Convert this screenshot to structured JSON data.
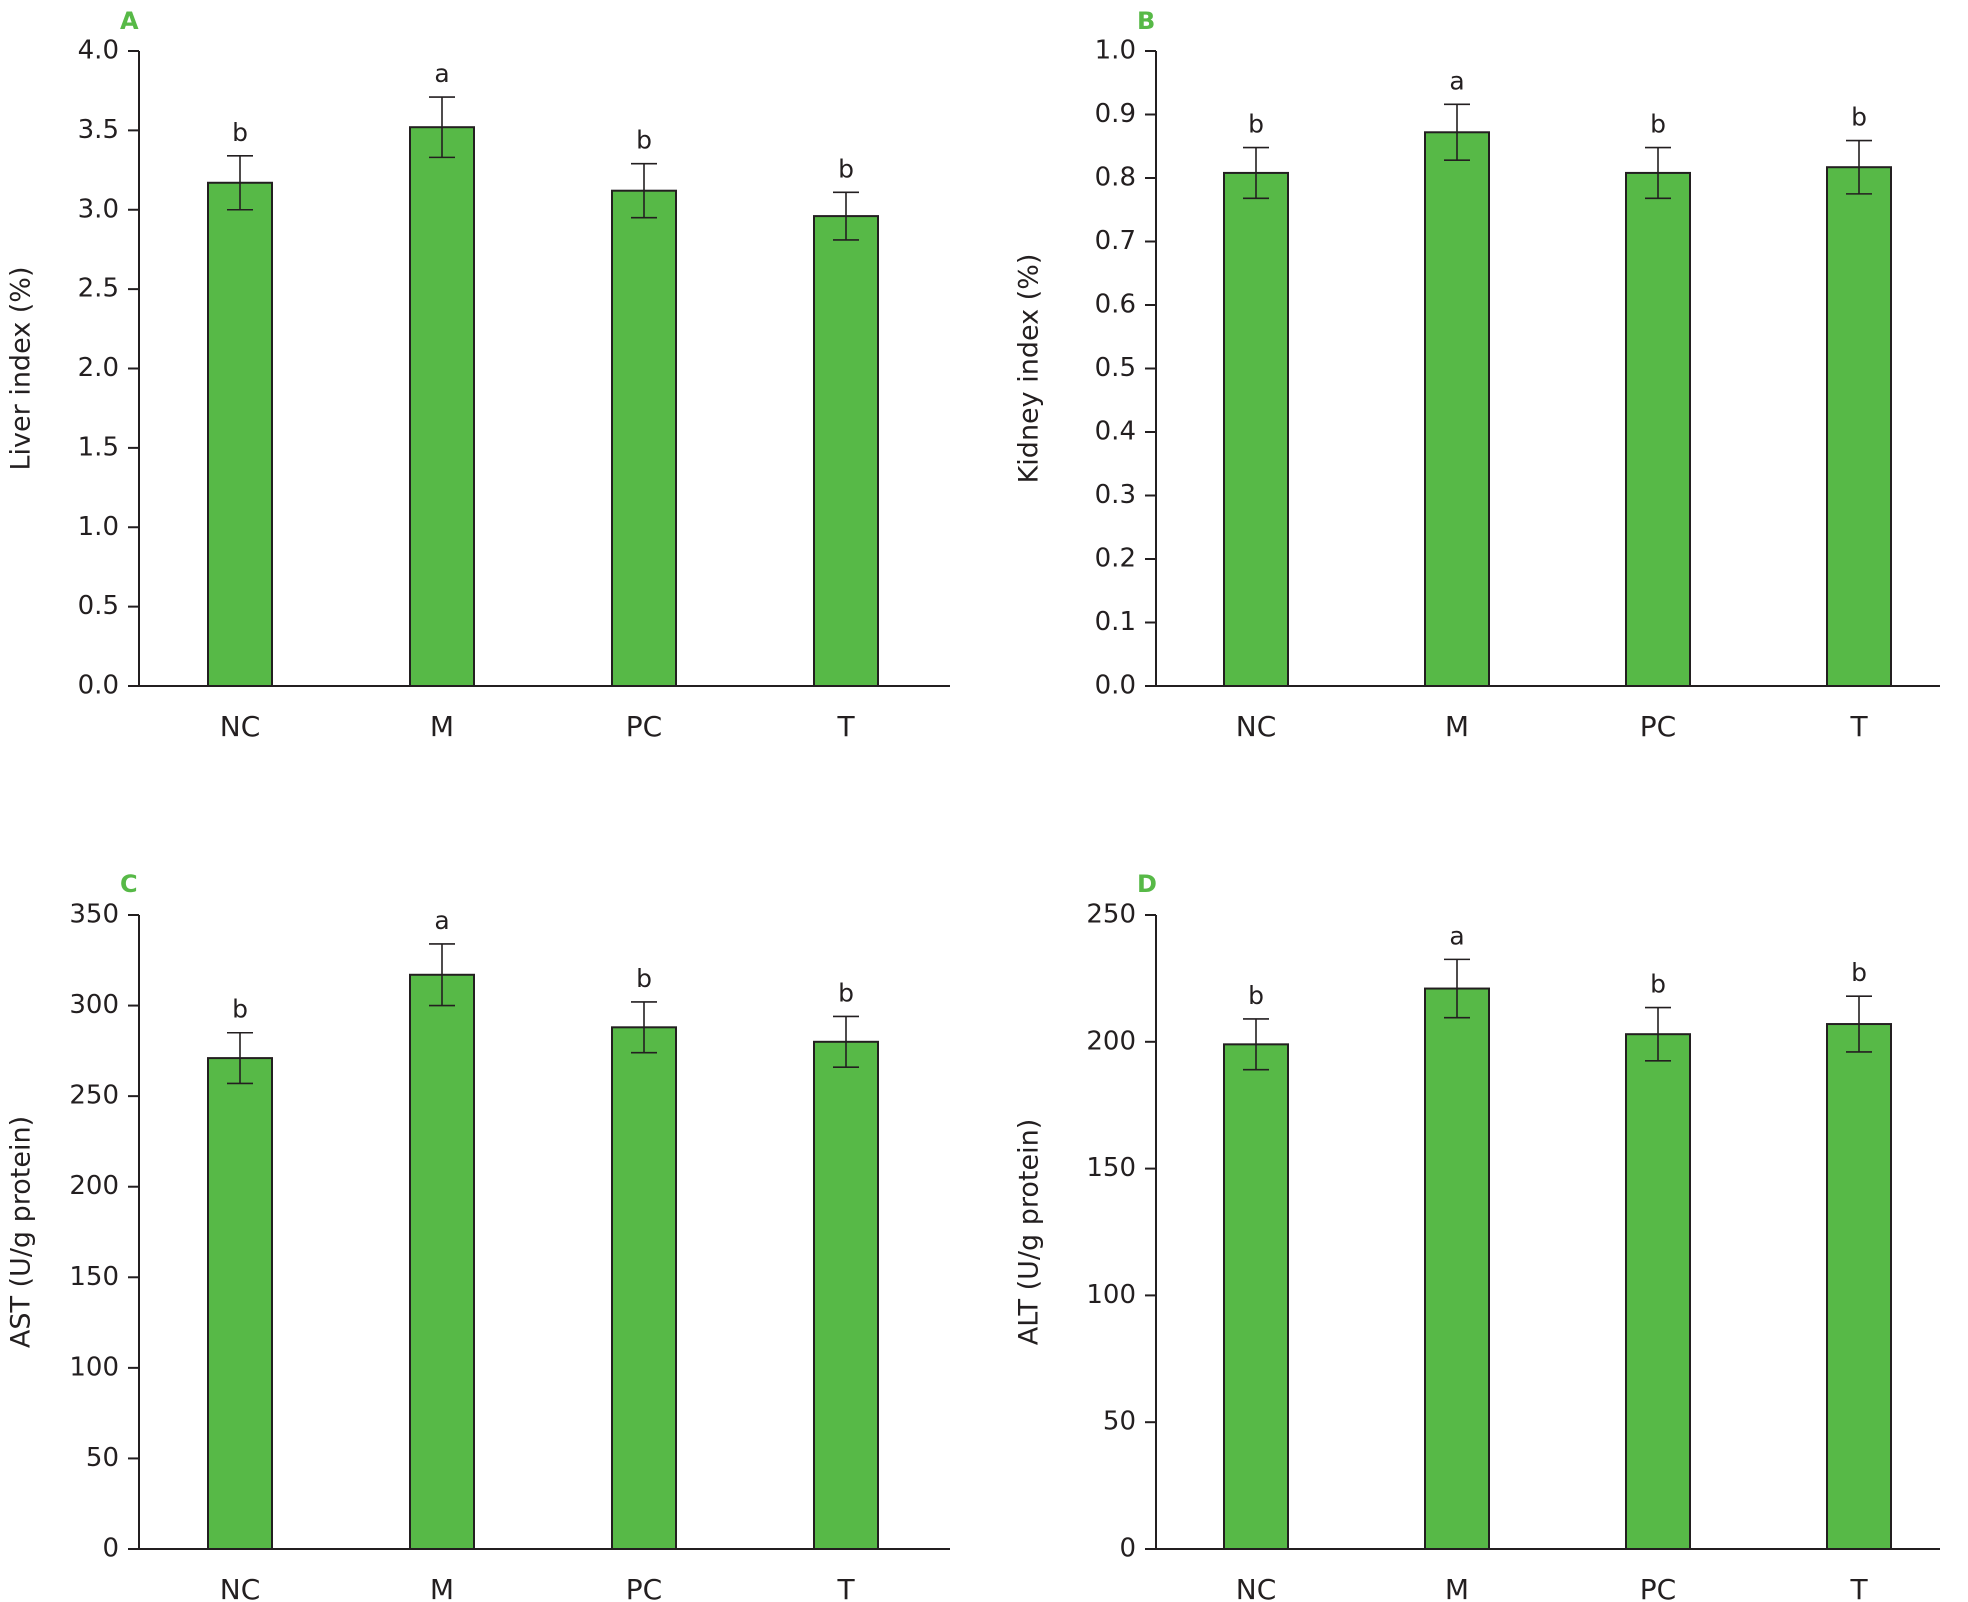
{
  "colors": {
    "bar": "#57b947",
    "panel_letter": "#57b947",
    "ink": "#231f20"
  },
  "chart_data": [
    {
      "panel": "A",
      "type": "bar",
      "categories": [
        "NC",
        "M",
        "PC",
        "T"
      ],
      "values": [
        3.17,
        3.52,
        3.12,
        2.96
      ],
      "errors": [
        0.17,
        0.19,
        0.17,
        0.15
      ],
      "significance": [
        "b",
        "a",
        "b",
        "b"
      ],
      "ylabel": "Liver index (%)",
      "xlabel": "",
      "ylim": [
        0,
        4.0
      ],
      "yticks": [
        "0.0",
        "0.5",
        "1.0",
        "1.5",
        "2.0",
        "2.5",
        "3.0",
        "3.5",
        "4.0"
      ],
      "grid": false
    },
    {
      "panel": "B",
      "type": "bar",
      "categories": [
        "NC",
        "M",
        "PC",
        "T"
      ],
      "values": [
        0.808,
        0.872,
        0.808,
        0.817
      ],
      "errors": [
        0.04,
        0.044,
        0.04,
        0.042
      ],
      "significance": [
        "b",
        "a",
        "b",
        "b"
      ],
      "ylabel": "Kidney index (%)",
      "xlabel": "",
      "ylim": [
        0,
        1.0
      ],
      "yticks": [
        "0.0",
        "0.1",
        "0.2",
        "0.3",
        "0.4",
        "0.5",
        "0.6",
        "0.7",
        "0.8",
        "0.9",
        "1.0"
      ],
      "grid": false
    },
    {
      "panel": "C",
      "type": "bar",
      "categories": [
        "NC",
        "M",
        "PC",
        "T"
      ],
      "values": [
        271,
        317,
        288,
        280
      ],
      "errors": [
        14,
        17,
        14,
        14
      ],
      "significance": [
        "b",
        "a",
        "b",
        "b"
      ],
      "ylabel": "AST (U/g protein)",
      "xlabel": "",
      "ylim": [
        0,
        350
      ],
      "yticks": [
        "0",
        "50",
        "100",
        "150",
        "200",
        "250",
        "300",
        "350"
      ],
      "grid": false
    },
    {
      "panel": "D",
      "type": "bar",
      "categories": [
        "NC",
        "M",
        "PC",
        "T"
      ],
      "values": [
        199,
        221,
        203,
        207
      ],
      "errors": [
        10,
        11.5,
        10.5,
        11
      ],
      "significance": [
        "b",
        "a",
        "b",
        "b"
      ],
      "ylabel": "ALT (U/g protein)",
      "xlabel": "",
      "ylim": [
        0,
        250
      ],
      "yticks": [
        "0",
        "50",
        "100",
        "150",
        "200",
        "250"
      ],
      "grid": false
    }
  ]
}
